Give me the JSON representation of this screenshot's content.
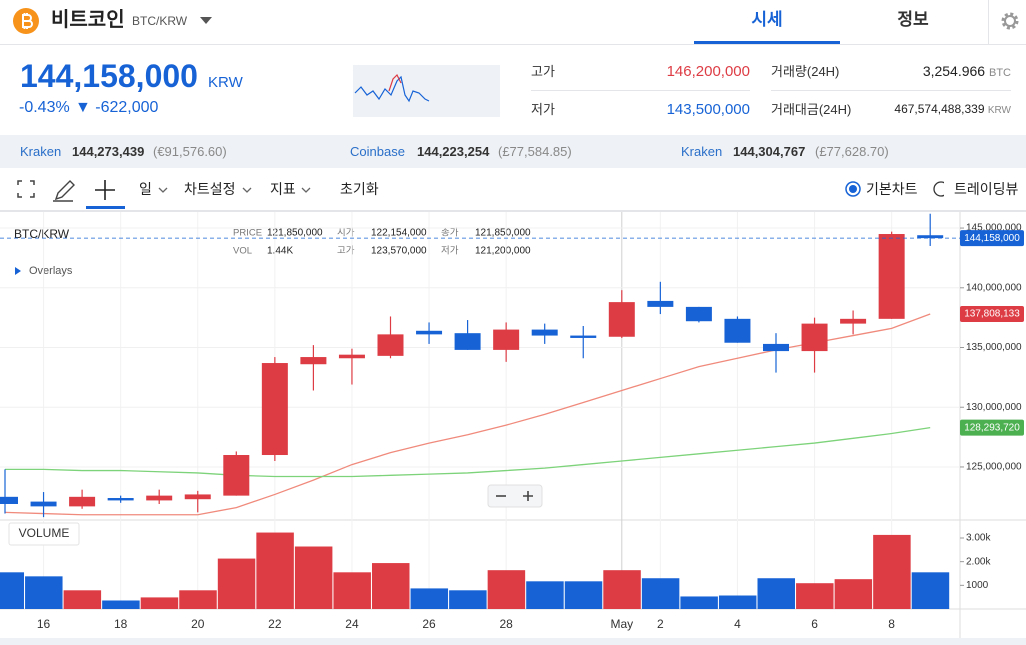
{
  "header": {
    "name": "비트코인",
    "pair": "BTC/KRW",
    "tabs": [
      "시세",
      "정보"
    ]
  },
  "price": {
    "value": "144,158,000",
    "unit": "KRW",
    "change_rate": "-0.43%",
    "change": "▼ -622,000"
  },
  "stats": [
    {
      "label": "고가",
      "value": "146,200,000"
    },
    {
      "label": "저가",
      "value": "143,500,000"
    },
    {
      "label": "거래량(24H)",
      "value": "3,254.966",
      "unit": "BTC"
    },
    {
      "label": "거래대금(24H)",
      "value": "467,574,488,339",
      "unit": "KRW"
    }
  ],
  "exchanges": [
    {
      "name": "Kraken",
      "price": "144,273,439",
      "converted": "(€91,576.60)"
    },
    {
      "name": "Coinbase",
      "price": "144,223,254",
      "converted": "(£77,584.85)"
    },
    {
      "name": "Kraken",
      "price": "144,304,767",
      "converted": "(£77,628.70)"
    }
  ],
  "toolbar": {
    "menus": [
      "일",
      "차트설정",
      "지표"
    ],
    "reset": "초기화",
    "modes": [
      "기본차트",
      "트레이딩뷰"
    ]
  },
  "chart_data": {
    "type": "candlestick",
    "symbol": "BTC/KRW",
    "overlays": "Overlays",
    "info": [
      {
        "label": "PRICE",
        "value": "121,850,000"
      },
      {
        "label": "시가",
        "value": "122,154,000"
      },
      {
        "label": "종가",
        "value": "121,850,000"
      },
      {
        "label": "VOL",
        "value": "1.44K"
      },
      {
        "label": "고가",
        "value": "123,570,000"
      },
      {
        "label": "저가",
        "value": "121,200,000"
      }
    ],
    "categories": [
      null,
      "16",
      null,
      "18",
      null,
      "20",
      null,
      "22",
      null,
      "24",
      null,
      "26",
      null,
      "28",
      null,
      null,
      "May",
      "2",
      null,
      "4",
      null,
      "6",
      null,
      "8",
      null
    ],
    "open": [
      122500000,
      122100000,
      121700000,
      122400000,
      122200000,
      122300000,
      122600000,
      126000000,
      133600000,
      134100000,
      134300000,
      136400000,
      136200000,
      134800000,
      136500000,
      136000000,
      135900000,
      138900000,
      138400000,
      137400000,
      135300000,
      134700000,
      137000000,
      137400000,
      144400000
    ],
    "high": [
      124800000,
      122900000,
      123100000,
      122600000,
      123100000,
      123000000,
      126300000,
      134200000,
      135200000,
      134900000,
      137600000,
      137100000,
      137300000,
      137100000,
      137000000,
      136800000,
      139800000,
      140500000,
      138400000,
      137600000,
      136200000,
      137500000,
      138100000,
      144700000,
      146200000
    ],
    "low": [
      121100000,
      120800000,
      121500000,
      122000000,
      121900000,
      121200000,
      122600000,
      125500000,
      131400000,
      131900000,
      134100000,
      135300000,
      134800000,
      133800000,
      135300000,
      134100000,
      135800000,
      137800000,
      137100000,
      135400000,
      132900000,
      132900000,
      136100000,
      137400000,
      143500000
    ],
    "close": [
      121900000,
      121700000,
      122500000,
      122200000,
      122600000,
      122700000,
      126000000,
      133700000,
      134200000,
      134400000,
      136100000,
      136100000,
      134800000,
      136500000,
      136000000,
      135800000,
      138800000,
      138400000,
      137200000,
      135400000,
      134700000,
      137000000,
      137400000,
      144500000,
      144158000
    ],
    "up_color": "#dd3c44",
    "down_color": "#1763d6",
    "ylim": [
      120560000,
      146260000
    ],
    "yticks": [
      {
        "value": 125000000,
        "label": "125,000,000"
      },
      {
        "value": 130000000,
        "label": "130,000,000"
      },
      {
        "value": 135000000,
        "label": "135,000,000"
      },
      {
        "value": 140000000,
        "label": "140,000,000"
      },
      {
        "value": 145000000,
        "label": "145,000,000"
      }
    ],
    "grid": true,
    "moving_averages": [
      {
        "color": "#f08a7c",
        "values": [
          121200000,
          121100000,
          121000000,
          121000000,
          121000000,
          121000000,
          121600000,
          122700000,
          123900000,
          125200000,
          126200000,
          127000000,
          127700000,
          128500000,
          129400000,
          130400000,
          131400000,
          132400000,
          133400000,
          134100000,
          134800000,
          135400000,
          136000000,
          136600000,
          137808133
        ]
      },
      {
        "color": "#7dd37a",
        "values": [
          124800000,
          124800000,
          124700000,
          124700000,
          124600000,
          124500000,
          124300000,
          124200000,
          124200000,
          124200000,
          124300000,
          124400000,
          124500000,
          124700000,
          124900000,
          125200000,
          125500000,
          125800000,
          126100000,
          126400000,
          126700000,
          127000000,
          127400000,
          127800000,
          128293720
        ]
      }
    ],
    "price_tags": [
      {
        "value": 144158000,
        "label": "144,158,000",
        "color": "#1763d6"
      },
      {
        "value": 137808133,
        "label": "137,808,133",
        "color": "#dd3c44"
      },
      {
        "value": 128293720,
        "label": "128,293,720",
        "color": "#4caf50"
      }
    ],
    "volume": {
      "title": "VOLUME",
      "values": [
        1550,
        1380,
        790,
        360,
        490,
        790,
        2130,
        3230,
        2640,
        1550,
        1940,
        870,
        790,
        1640,
        1170,
        1170,
        1640,
        1300,
        530,
        570,
        1300,
        1090,
        1260,
        3130,
        1550
      ],
      "ylim": [
        0,
        3760
      ],
      "yticks": [
        1000,
        {
          "value": 2000,
          "label": "2.00k"
        },
        {
          "value": 3000,
          "label": "3.00k"
        }
      ]
    }
  }
}
